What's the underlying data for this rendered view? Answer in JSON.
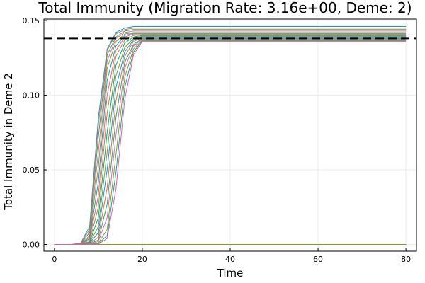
{
  "chart_data": {
    "type": "line",
    "title": "Total Immunity (Migration Rate: 3.16e+00, Deme: 2)",
    "xlabel": "Time",
    "ylabel": "Total Immunity in Deme 2",
    "xlim": [
      -2.4,
      82.4
    ],
    "ylim": [
      -0.0045,
      0.151
    ],
    "xticks": [
      0,
      20,
      40,
      60,
      80
    ],
    "xtick_labels": [
      "0",
      "20",
      "40",
      "60",
      "80"
    ],
    "yticks": [
      0,
      0.05,
      0.1,
      0.15
    ],
    "ytick_labels": [
      "0.00",
      "0.05",
      "0.10",
      "0.15"
    ],
    "grid": true,
    "legend": "none",
    "palette": [
      "#009af9",
      "#e26f46",
      "#3da44d",
      "#c271d2",
      "#ac8e18",
      "#00a9ad",
      "#ed5e93",
      "#c68225",
      "#00a98d",
      "#8e971e"
    ],
    "rising_curves": [
      {
        "x": [
          0,
          2,
          4,
          6,
          8,
          10,
          12,
          14,
          16,
          18,
          20,
          80
        ],
        "y": [
          0,
          0,
          0,
          0.001,
          0.012,
          0.085,
          0.131,
          0.142,
          0.145,
          0.146,
          0.146,
          0.146
        ]
      },
      {
        "x": [
          0,
          2,
          4,
          6,
          8,
          10,
          12,
          14,
          16,
          18,
          20,
          80
        ],
        "y": [
          0,
          0,
          0,
          0.0008,
          0.01,
          0.08,
          0.13,
          0.141,
          0.144,
          0.145,
          0.145,
          0.145
        ]
      },
      {
        "x": [
          0,
          2,
          4,
          6,
          8,
          10,
          12,
          14,
          16,
          18,
          20,
          80
        ],
        "y": [
          0,
          0,
          0,
          0.0005,
          0.008,
          0.072,
          0.127,
          0.139,
          0.143,
          0.144,
          0.144,
          0.144
        ]
      },
      {
        "x": [
          0,
          2,
          4,
          6,
          8,
          10,
          12,
          14,
          16,
          18,
          20,
          80
        ],
        "y": [
          0,
          0,
          0,
          0.0004,
          0.006,
          0.062,
          0.123,
          0.138,
          0.142,
          0.143,
          0.143,
          0.143
        ]
      },
      {
        "x": [
          0,
          2,
          4,
          6,
          8,
          10,
          12,
          14,
          16,
          18,
          20,
          80
        ],
        "y": [
          0,
          0,
          0,
          0.0003,
          0.005,
          0.052,
          0.118,
          0.136,
          0.141,
          0.142,
          0.142,
          0.142
        ]
      },
      {
        "x": [
          0,
          2,
          4,
          6,
          8,
          10,
          12,
          14,
          16,
          18,
          20,
          80
        ],
        "y": [
          0,
          0,
          0,
          0.0002,
          0.004,
          0.042,
          0.11,
          0.133,
          0.14,
          0.1415,
          0.1415,
          0.1415
        ]
      },
      {
        "x": [
          0,
          2,
          4,
          6,
          8,
          10,
          12,
          14,
          16,
          18,
          20,
          80
        ],
        "y": [
          0,
          0,
          0,
          0.0001,
          0.003,
          0.033,
          0.1,
          0.13,
          0.139,
          0.141,
          0.141,
          0.141
        ]
      },
      {
        "x": [
          0,
          2,
          4,
          6,
          8,
          10,
          12,
          14,
          16,
          18,
          20,
          80
        ],
        "y": [
          0,
          0,
          0,
          0.0001,
          0.002,
          0.025,
          0.088,
          0.126,
          0.137,
          0.14,
          0.1405,
          0.1405
        ]
      },
      {
        "x": [
          0,
          2,
          4,
          6,
          8,
          10,
          12,
          14,
          16,
          18,
          20,
          80
        ],
        "y": [
          0,
          0,
          0,
          0,
          0.0015,
          0.018,
          0.075,
          0.12,
          0.135,
          0.139,
          0.14,
          0.14
        ]
      },
      {
        "x": [
          0,
          2,
          4,
          6,
          8,
          10,
          12,
          14,
          16,
          18,
          20,
          80
        ],
        "y": [
          0,
          0,
          0,
          0,
          0.001,
          0.012,
          0.062,
          0.113,
          0.132,
          0.138,
          0.1395,
          0.1395
        ]
      },
      {
        "x": [
          0,
          2,
          4,
          6,
          8,
          10,
          12,
          14,
          16,
          18,
          20,
          80
        ],
        "y": [
          0,
          0,
          0,
          0,
          0.0008,
          0.008,
          0.05,
          0.105,
          0.129,
          0.137,
          0.139,
          0.139
        ]
      },
      {
        "x": [
          0,
          2,
          4,
          6,
          8,
          10,
          12,
          14,
          16,
          18,
          20,
          80
        ],
        "y": [
          0,
          0,
          0,
          0,
          0.0005,
          0.005,
          0.038,
          0.096,
          0.126,
          0.136,
          0.1385,
          0.1385
        ]
      },
      {
        "x": [
          0,
          2,
          4,
          6,
          8,
          10,
          12,
          14,
          16,
          18,
          20,
          80
        ],
        "y": [
          0,
          0,
          0,
          0,
          0.0003,
          0.003,
          0.027,
          0.085,
          0.122,
          0.134,
          0.138,
          0.138
        ]
      },
      {
        "x": [
          0,
          2,
          4,
          6,
          8,
          10,
          12,
          14,
          16,
          18,
          20,
          80
        ],
        "y": [
          0,
          0,
          0,
          0,
          0.0002,
          0.002,
          0.018,
          0.073,
          0.118,
          0.133,
          0.1375,
          0.1375
        ]
      },
      {
        "x": [
          0,
          2,
          4,
          6,
          8,
          10,
          12,
          14,
          16,
          18,
          20,
          80
        ],
        "y": [
          0,
          0,
          0,
          0,
          0.0001,
          0.001,
          0.01,
          0.06,
          0.112,
          0.131,
          0.137,
          0.137
        ]
      },
      {
        "x": [
          0,
          2,
          4,
          6,
          8,
          10,
          12,
          14,
          16,
          18,
          20,
          80
        ],
        "y": [
          0,
          0,
          0,
          0,
          0,
          0.0005,
          0.006,
          0.048,
          0.105,
          0.129,
          0.1365,
          0.1365
        ]
      },
      {
        "x": [
          0,
          2,
          4,
          6,
          8,
          10,
          12,
          14,
          16,
          18,
          20,
          80
        ],
        "y": [
          0,
          0,
          0,
          0,
          0,
          0.0002,
          0.004,
          0.037,
          0.097,
          0.127,
          0.136,
          0.136
        ]
      }
    ],
    "baseline_series_count": 40,
    "baseline_value": 0,
    "threshold": 0.138
  }
}
